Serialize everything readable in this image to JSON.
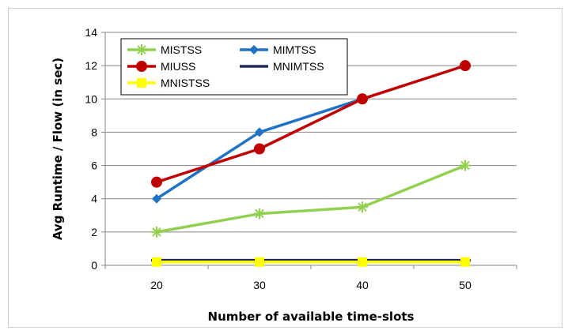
{
  "chart_data": {
    "type": "line",
    "title": "",
    "xlabel": "Number of available time-slots",
    "ylabel": "Avg Runtime / Flow (in sec)",
    "categories": [
      "20",
      "30",
      "40",
      "50"
    ],
    "ylim": [
      0,
      14
    ],
    "yticks": [
      0,
      2,
      4,
      6,
      8,
      10,
      12,
      14
    ],
    "ytick_labels": [
      "0",
      "2",
      "4",
      "6",
      "8",
      "10",
      "12",
      "14"
    ],
    "grid": true,
    "legend_position": "top-left",
    "series": [
      {
        "name": "MISTSS",
        "values": [
          2,
          3.1,
          3.5,
          6
        ],
        "color": "#92d050",
        "marker": "star"
      },
      {
        "name": "MIMTSS",
        "values": [
          4,
          8,
          10,
          null
        ],
        "color": "#1f72c4",
        "marker": "diamond"
      },
      {
        "name": "MIUSS",
        "values": [
          5,
          7,
          10,
          12
        ],
        "color": "#c00000",
        "marker": "circle"
      },
      {
        "name": "MNIMTSS",
        "values": [
          0.3,
          0.3,
          0.3,
          0.3
        ],
        "color": "#1f2d5c",
        "marker": "dash"
      },
      {
        "name": "MNISTSS",
        "values": [
          0.2,
          0.2,
          0.2,
          0.2
        ],
        "color": "#ffff00",
        "marker": "square"
      }
    ],
    "legend_layout": [
      [
        "MISTSS",
        "MIMTSS"
      ],
      [
        "MIUSS",
        "MNIMTSS"
      ],
      [
        "MNISTSS"
      ]
    ]
  }
}
